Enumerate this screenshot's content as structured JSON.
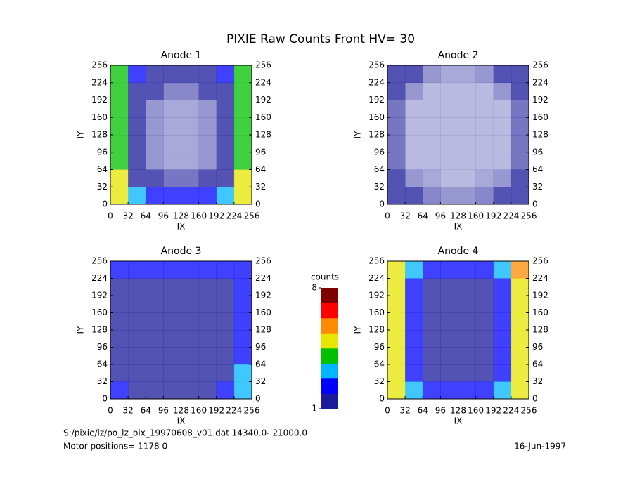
{
  "title": "PIXIE Raw Counts Front HV= 30",
  "colormap": [
    "#1a1a9a",
    "#0000ff",
    "#00b4ff",
    "#00c000",
    "#e6e600",
    "#ff8c00",
    "#ff0000",
    "#800000"
  ],
  "colorbar": {
    "label": "counts",
    "zlim": [
      1,
      8
    ],
    "ticks": [
      1,
      8
    ]
  },
  "footer": {
    "file": "S:/pixie/lz/po_lz_pix_19970608_v01.dat   14340.0- 21000.0",
    "motor": "Motor positions= 1178 0",
    "date": "16-Jun-1997"
  },
  "chart_data": [
    {
      "type": "heatmap",
      "title": "Anode 1",
      "xlabel": "IX",
      "ylabel": "IY",
      "xlim": [
        0,
        256
      ],
      "ylim": [
        0,
        256
      ],
      "xticks": [
        0,
        32,
        64,
        96,
        128,
        160,
        192,
        224,
        256
      ],
      "yticks": [
        0,
        32,
        64,
        96,
        128,
        160,
        192,
        224,
        256
      ],
      "values": [
        [
          4,
          2,
          1.5,
          1,
          1,
          1.5,
          2,
          4
        ],
        [
          4,
          1.5,
          1,
          0.7,
          0.7,
          1,
          1.5,
          4
        ],
        [
          4,
          1.2,
          0.6,
          0.5,
          0.5,
          0.6,
          1.2,
          4
        ],
        [
          4,
          1.2,
          0.6,
          0.5,
          0.5,
          0.6,
          1.2,
          4
        ],
        [
          4,
          1.2,
          0.6,
          0.5,
          0.5,
          0.6,
          1.2,
          4
        ],
        [
          4,
          1.2,
          0.6,
          0.5,
          0.5,
          0.6,
          1.2,
          4
        ],
        [
          4.5,
          1.5,
          1,
          0.8,
          0.8,
          1,
          1.5,
          4.5
        ],
        [
          5,
          3,
          2.5,
          2,
          2,
          2.5,
          3,
          5
        ]
      ]
    },
    {
      "type": "heatmap",
      "title": "Anode 2",
      "xlabel": "IX",
      "ylabel": "IY",
      "xlim": [
        0,
        256
      ],
      "ylim": [
        0,
        256
      ],
      "xticks": [
        0,
        32,
        64,
        96,
        128,
        160,
        192,
        224,
        256
      ],
      "yticks": [
        0,
        32,
        64,
        96,
        128,
        160,
        192,
        224,
        256
      ],
      "values": [
        [
          1.5,
          1,
          0.6,
          0.5,
          0.5,
          0.6,
          1,
          1.5
        ],
        [
          1,
          0.6,
          0.4,
          0.4,
          0.4,
          0.4,
          0.6,
          1.2
        ],
        [
          0.8,
          0.4,
          0.4,
          0.4,
          0.4,
          0.4,
          0.4,
          0.8
        ],
        [
          0.8,
          0.4,
          0.4,
          0.4,
          0.4,
          0.4,
          0.4,
          0.8
        ],
        [
          0.8,
          0.4,
          0.4,
          0.4,
          0.4,
          0.4,
          0.4,
          0.8
        ],
        [
          0.8,
          0.4,
          0.4,
          0.4,
          0.4,
          0.4,
          0.4,
          0.8
        ],
        [
          1,
          0.6,
          0.5,
          0.4,
          0.4,
          0.5,
          0.6,
          1.2
        ],
        [
          1.5,
          1,
          0.7,
          0.6,
          0.6,
          0.7,
          1,
          1.5
        ]
      ]
    },
    {
      "type": "heatmap",
      "title": "Anode 3",
      "xlabel": "IX",
      "ylabel": "IY",
      "xlim": [
        0,
        256
      ],
      "ylim": [
        0,
        256
      ],
      "xticks": [
        0,
        32,
        64,
        96,
        128,
        160,
        192,
        224,
        256
      ],
      "yticks": [
        0,
        32,
        64,
        96,
        128,
        160,
        192,
        224,
        256
      ],
      "values": [
        [
          2,
          2,
          2,
          2,
          2,
          2,
          2,
          2.5
        ],
        [
          1.8,
          1.5,
          1.5,
          1.5,
          1.5,
          1.5,
          1.5,
          2.5
        ],
        [
          1.8,
          1.5,
          1.5,
          1.5,
          1.5,
          1.5,
          1.5,
          2.5
        ],
        [
          1.8,
          1.5,
          1.5,
          1.5,
          1.5,
          1.5,
          1.5,
          2.5
        ],
        [
          1.8,
          1.5,
          1.5,
          1.5,
          1.5,
          1.5,
          1.5,
          2.5
        ],
        [
          1.8,
          1.5,
          1.5,
          1.5,
          1.5,
          1.5,
          1.5,
          2.5
        ],
        [
          1.8,
          1.5,
          1.5,
          1.5,
          1.5,
          1.5,
          1.8,
          2.8
        ],
        [
          2,
          1.8,
          1.8,
          1.8,
          1.8,
          1.8,
          2,
          3
        ]
      ]
    },
    {
      "type": "heatmap",
      "title": "Anode 4",
      "xlabel": "IX",
      "ylabel": "IY",
      "xlim": [
        0,
        256
      ],
      "ylim": [
        0,
        256
      ],
      "xticks": [
        0,
        32,
        64,
        96,
        128,
        160,
        192,
        224,
        256
      ],
      "yticks": [
        0,
        32,
        64,
        96,
        128,
        160,
        192,
        224,
        256
      ],
      "values": [
        [
          5,
          3,
          2.5,
          2.5,
          2.5,
          2.5,
          3,
          5.5
        ],
        [
          5,
          2.5,
          1.8,
          1.8,
          1.8,
          1.8,
          2.5,
          5
        ],
        [
          5,
          2.5,
          1.8,
          1.8,
          1.8,
          1.8,
          2.5,
          5
        ],
        [
          5,
          2.5,
          1.8,
          1.8,
          1.8,
          1.8,
          2.5,
          5
        ],
        [
          5,
          2.5,
          1.8,
          1.8,
          1.8,
          1.8,
          2.5,
          5
        ],
        [
          5,
          2.5,
          1.8,
          1.8,
          1.8,
          1.8,
          2.5,
          5
        ],
        [
          5,
          2.5,
          1.8,
          1.8,
          1.8,
          1.8,
          2.5,
          5
        ],
        [
          5,
          3,
          2.5,
          2.5,
          2.5,
          2.5,
          3,
          5
        ]
      ]
    }
  ]
}
